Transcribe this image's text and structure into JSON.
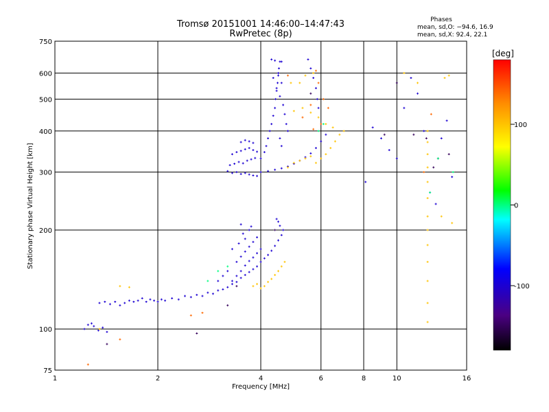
{
  "chart_data": {
    "type": "scatter",
    "title": "Tromsø 20151001 14:46:00–14:47:43",
    "subtitle": "RwPretec (8p)",
    "xlabel": "Frequency [MHz]",
    "ylabel": "Stationary phase Virtual Height [km]",
    "x_scale": "log",
    "y_scale": "log",
    "xlim": [
      1,
      16
    ],
    "ylim": [
      75,
      750
    ],
    "x_ticks": [
      1,
      2,
      4,
      6,
      8,
      10,
      16
    ],
    "y_ticks": [
      75,
      100,
      200,
      300,
      400,
      500,
      600,
      750
    ],
    "grid": true,
    "stats": {
      "title": "Phases",
      "line_o": "mean, sd,O: −94.6, 16.9",
      "line_x": "mean, sd,X:  92.4, 22.1"
    },
    "colorbar": {
      "label": "[deg]",
      "min": -180,
      "max": 180,
      "ticks": [
        100,
        0,
        -100
      ],
      "colors": [
        "#000000",
        "#4b0082",
        "#0000ff",
        "#00ffff",
        "#00ff00",
        "#ffff00",
        "#ff8c00",
        "#ff0000"
      ]
    },
    "series": [
      {
        "color_phase": -100,
        "points": [
          [
            1.22,
            100
          ],
          [
            1.25,
            103
          ],
          [
            1.28,
            104
          ],
          [
            1.3,
            102
          ],
          [
            1.34,
            99
          ],
          [
            1.38,
            101
          ],
          [
            1.42,
            98
          ],
          [
            1.35,
            120
          ],
          [
            1.4,
            121
          ],
          [
            1.45,
            119
          ],
          [
            1.5,
            121
          ],
          [
            1.55,
            118
          ],
          [
            1.6,
            120
          ],
          [
            1.65,
            122
          ],
          [
            1.7,
            121
          ],
          [
            1.75,
            122
          ],
          [
            1.8,
            124
          ],
          [
            1.85,
            121
          ],
          [
            1.9,
            123
          ],
          [
            1.95,
            122
          ],
          [
            2.0,
            121
          ],
          [
            2.05,
            123
          ],
          [
            2.1,
            122
          ],
          [
            2.2,
            124
          ],
          [
            2.3,
            123
          ],
          [
            2.4,
            126
          ],
          [
            2.5,
            125
          ],
          [
            2.6,
            127
          ],
          [
            2.7,
            126
          ],
          [
            2.8,
            129
          ],
          [
            2.9,
            128
          ],
          [
            3.0,
            131
          ],
          [
            3.1,
            132
          ],
          [
            3.2,
            134
          ],
          [
            3.3,
            137
          ],
          [
            3.4,
            139
          ],
          [
            3.5,
            143
          ],
          [
            3.6,
            146
          ],
          [
            3.7,
            149
          ],
          [
            3.8,
            152
          ],
          [
            3.9,
            155
          ],
          [
            4.0,
            160
          ],
          [
            4.1,
            164
          ],
          [
            4.2,
            168
          ],
          [
            4.3,
            173
          ],
          [
            4.4,
            179
          ],
          [
            4.5,
            186
          ],
          [
            4.6,
            193
          ],
          [
            4.65,
            200
          ],
          [
            4.55,
            206
          ],
          [
            4.5,
            212
          ],
          [
            4.45,
            216
          ],
          [
            3.3,
            140
          ],
          [
            3.4,
            145
          ],
          [
            3.5,
            150
          ],
          [
            3.6,
            156
          ],
          [
            3.7,
            161
          ],
          [
            3.8,
            165
          ],
          [
            3.9,
            170
          ],
          [
            4.0,
            175
          ],
          [
            3.4,
            160
          ],
          [
            3.5,
            166
          ],
          [
            3.6,
            172
          ],
          [
            3.7,
            178
          ],
          [
            3.8,
            184
          ],
          [
            3.9,
            190
          ],
          [
            3.55,
            195
          ],
          [
            3.7,
            200
          ],
          [
            3.3,
            175
          ],
          [
            3.45,
            182
          ],
          [
            3.6,
            188
          ],
          [
            3.2,
            150
          ],
          [
            3.1,
            145
          ],
          [
            3.0,
            140
          ],
          [
            3.5,
            208
          ],
          [
            3.75,
            205
          ],
          [
            3.2,
            302
          ],
          [
            3.3,
            298
          ],
          [
            3.4,
            300
          ],
          [
            3.5,
            296
          ],
          [
            3.6,
            298
          ],
          [
            3.7,
            295
          ],
          [
            3.8,
            293
          ],
          [
            3.9,
            292
          ],
          [
            3.25,
            315
          ],
          [
            3.35,
            318
          ],
          [
            3.45,
            322
          ],
          [
            3.55,
            319
          ],
          [
            3.65,
            325
          ],
          [
            3.75,
            328
          ],
          [
            3.85,
            331
          ],
          [
            3.3,
            340
          ],
          [
            3.4,
            345
          ],
          [
            3.5,
            348
          ],
          [
            3.6,
            352
          ],
          [
            3.7,
            355
          ],
          [
            3.8,
            350
          ],
          [
            3.9,
            346
          ],
          [
            3.5,
            370
          ],
          [
            3.6,
            375
          ],
          [
            3.7,
            372
          ],
          [
            3.8,
            368
          ],
          [
            4.0,
            300
          ],
          [
            4.2,
            302
          ],
          [
            4.4,
            305
          ],
          [
            4.6,
            308
          ],
          [
            4.8,
            312
          ],
          [
            5.0,
            318
          ],
          [
            5.2,
            325
          ],
          [
            5.4,
            333
          ],
          [
            5.6,
            342
          ],
          [
            5.8,
            355
          ],
          [
            6.0,
            372
          ],
          [
            6.2,
            390
          ],
          [
            4.0,
            330
          ],
          [
            4.1,
            345
          ],
          [
            4.15,
            360
          ],
          [
            4.2,
            380
          ],
          [
            4.25,
            400
          ],
          [
            4.3,
            420
          ],
          [
            4.35,
            445
          ],
          [
            4.4,
            470
          ],
          [
            4.42,
            500
          ],
          [
            4.45,
            530
          ],
          [
            4.48,
            560
          ],
          [
            4.5,
            590
          ],
          [
            4.52,
            620
          ],
          [
            4.55,
            650
          ],
          [
            4.3,
            660
          ],
          [
            4.4,
            655
          ],
          [
            4.6,
            650
          ],
          [
            4.5,
            600
          ],
          [
            4.35,
            580
          ],
          [
            4.6,
            560
          ],
          [
            4.45,
            540
          ],
          [
            4.55,
            510
          ],
          [
            4.65,
            480
          ],
          [
            4.7,
            450
          ],
          [
            4.75,
            420
          ],
          [
            4.8,
            400
          ],
          [
            4.55,
            380
          ],
          [
            4.6,
            360
          ],
          [
            5.5,
            660
          ],
          [
            5.6,
            620
          ],
          [
            5.7,
            580
          ],
          [
            5.8,
            540
          ],
          [
            5.85,
            500
          ],
          [
            5.9,
            470
          ],
          [
            10.0,
            330
          ],
          [
            10.5,
            470
          ],
          [
            11.0,
            580
          ],
          [
            11.5,
            520
          ],
          [
            12.0,
            400
          ],
          [
            12.5,
            260
          ],
          [
            13.0,
            240
          ],
          [
            13.5,
            380
          ],
          [
            14.0,
            430
          ],
          [
            14.5,
            290
          ],
          [
            9.0,
            380
          ],
          [
            8.5,
            410
          ],
          [
            8.1,
            280
          ],
          [
            9.5,
            350
          ]
        ]
      },
      {
        "color_phase": -150,
        "points": [
          [
            1.42,
            90
          ],
          [
            2.6,
            97
          ],
          [
            3.2,
            118
          ],
          [
            3.4,
            135
          ],
          [
            4.4,
            200
          ],
          [
            5.6,
            520
          ],
          [
            10.0,
            560
          ],
          [
            11.2,
            390
          ],
          [
            12.2,
            380
          ],
          [
            13.2,
            330
          ],
          [
            14.2,
            340
          ],
          [
            12.8,
            310
          ],
          [
            9.2,
            390
          ]
        ]
      },
      {
        "color_phase": 100,
        "points": [
          [
            1.35,
            100
          ],
          [
            1.55,
            135
          ],
          [
            1.65,
            134
          ],
          [
            3.8,
            135
          ],
          [
            3.9,
            137
          ],
          [
            4.0,
            133
          ],
          [
            4.1,
            135
          ],
          [
            4.2,
            139
          ],
          [
            4.3,
            142
          ],
          [
            4.4,
            146
          ],
          [
            4.5,
            150
          ],
          [
            4.6,
            155
          ],
          [
            4.7,
            160
          ],
          [
            4.8,
            310
          ],
          [
            5.0,
            320
          ],
          [
            5.2,
            325
          ],
          [
            5.4,
            330
          ],
          [
            5.6,
            335
          ],
          [
            5.8,
            320
          ],
          [
            6.0,
            330
          ],
          [
            6.2,
            340
          ],
          [
            6.4,
            355
          ],
          [
            6.6,
            372
          ],
          [
            6.8,
            390
          ],
          [
            7.0,
            400
          ],
          [
            5.0,
            460
          ],
          [
            5.3,
            470
          ],
          [
            5.6,
            455
          ],
          [
            5.9,
            440
          ],
          [
            6.2,
            420
          ],
          [
            6.5,
            410
          ],
          [
            4.9,
            560
          ],
          [
            5.2,
            560
          ],
          [
            5.4,
            590
          ],
          [
            5.7,
            600
          ],
          [
            12.3,
            400
          ],
          [
            12.3,
            370
          ],
          [
            12.3,
            340
          ],
          [
            12.3,
            310
          ],
          [
            12.3,
            280
          ],
          [
            12.3,
            250
          ],
          [
            12.3,
            220
          ],
          [
            12.3,
            200
          ],
          [
            12.3,
            180
          ],
          [
            12.3,
            160
          ],
          [
            12.3,
            140
          ],
          [
            12.3,
            120
          ],
          [
            12.3,
            105
          ],
          [
            13.5,
            220
          ],
          [
            14.5,
            210
          ],
          [
            13.8,
            580
          ],
          [
            14.2,
            590
          ],
          [
            11.5,
            560
          ],
          [
            10.5,
            600
          ]
        ]
      },
      {
        "color_phase": 140,
        "points": [
          [
            1.25,
            78
          ],
          [
            1.55,
            93
          ],
          [
            2.5,
            110
          ],
          [
            2.7,
            112
          ],
          [
            5.8,
            610
          ],
          [
            5.9,
            560
          ],
          [
            6.1,
            500
          ],
          [
            6.3,
            470
          ],
          [
            5.3,
            440
          ],
          [
            5.6,
            480
          ],
          [
            5.7,
            405
          ],
          [
            6.0,
            420
          ],
          [
            4.8,
            590
          ],
          [
            12.6,
            450
          ],
          [
            12.0,
            300
          ]
        ]
      },
      {
        "color_phase": 0,
        "points": [
          [
            2.8,
            140
          ],
          [
            3.0,
            150
          ],
          [
            3.2,
            155
          ],
          [
            5.9,
            400
          ],
          [
            6.1,
            420
          ],
          [
            13.2,
            330
          ],
          [
            14.6,
            300
          ],
          [
            12.5,
            260
          ]
        ]
      }
    ]
  }
}
